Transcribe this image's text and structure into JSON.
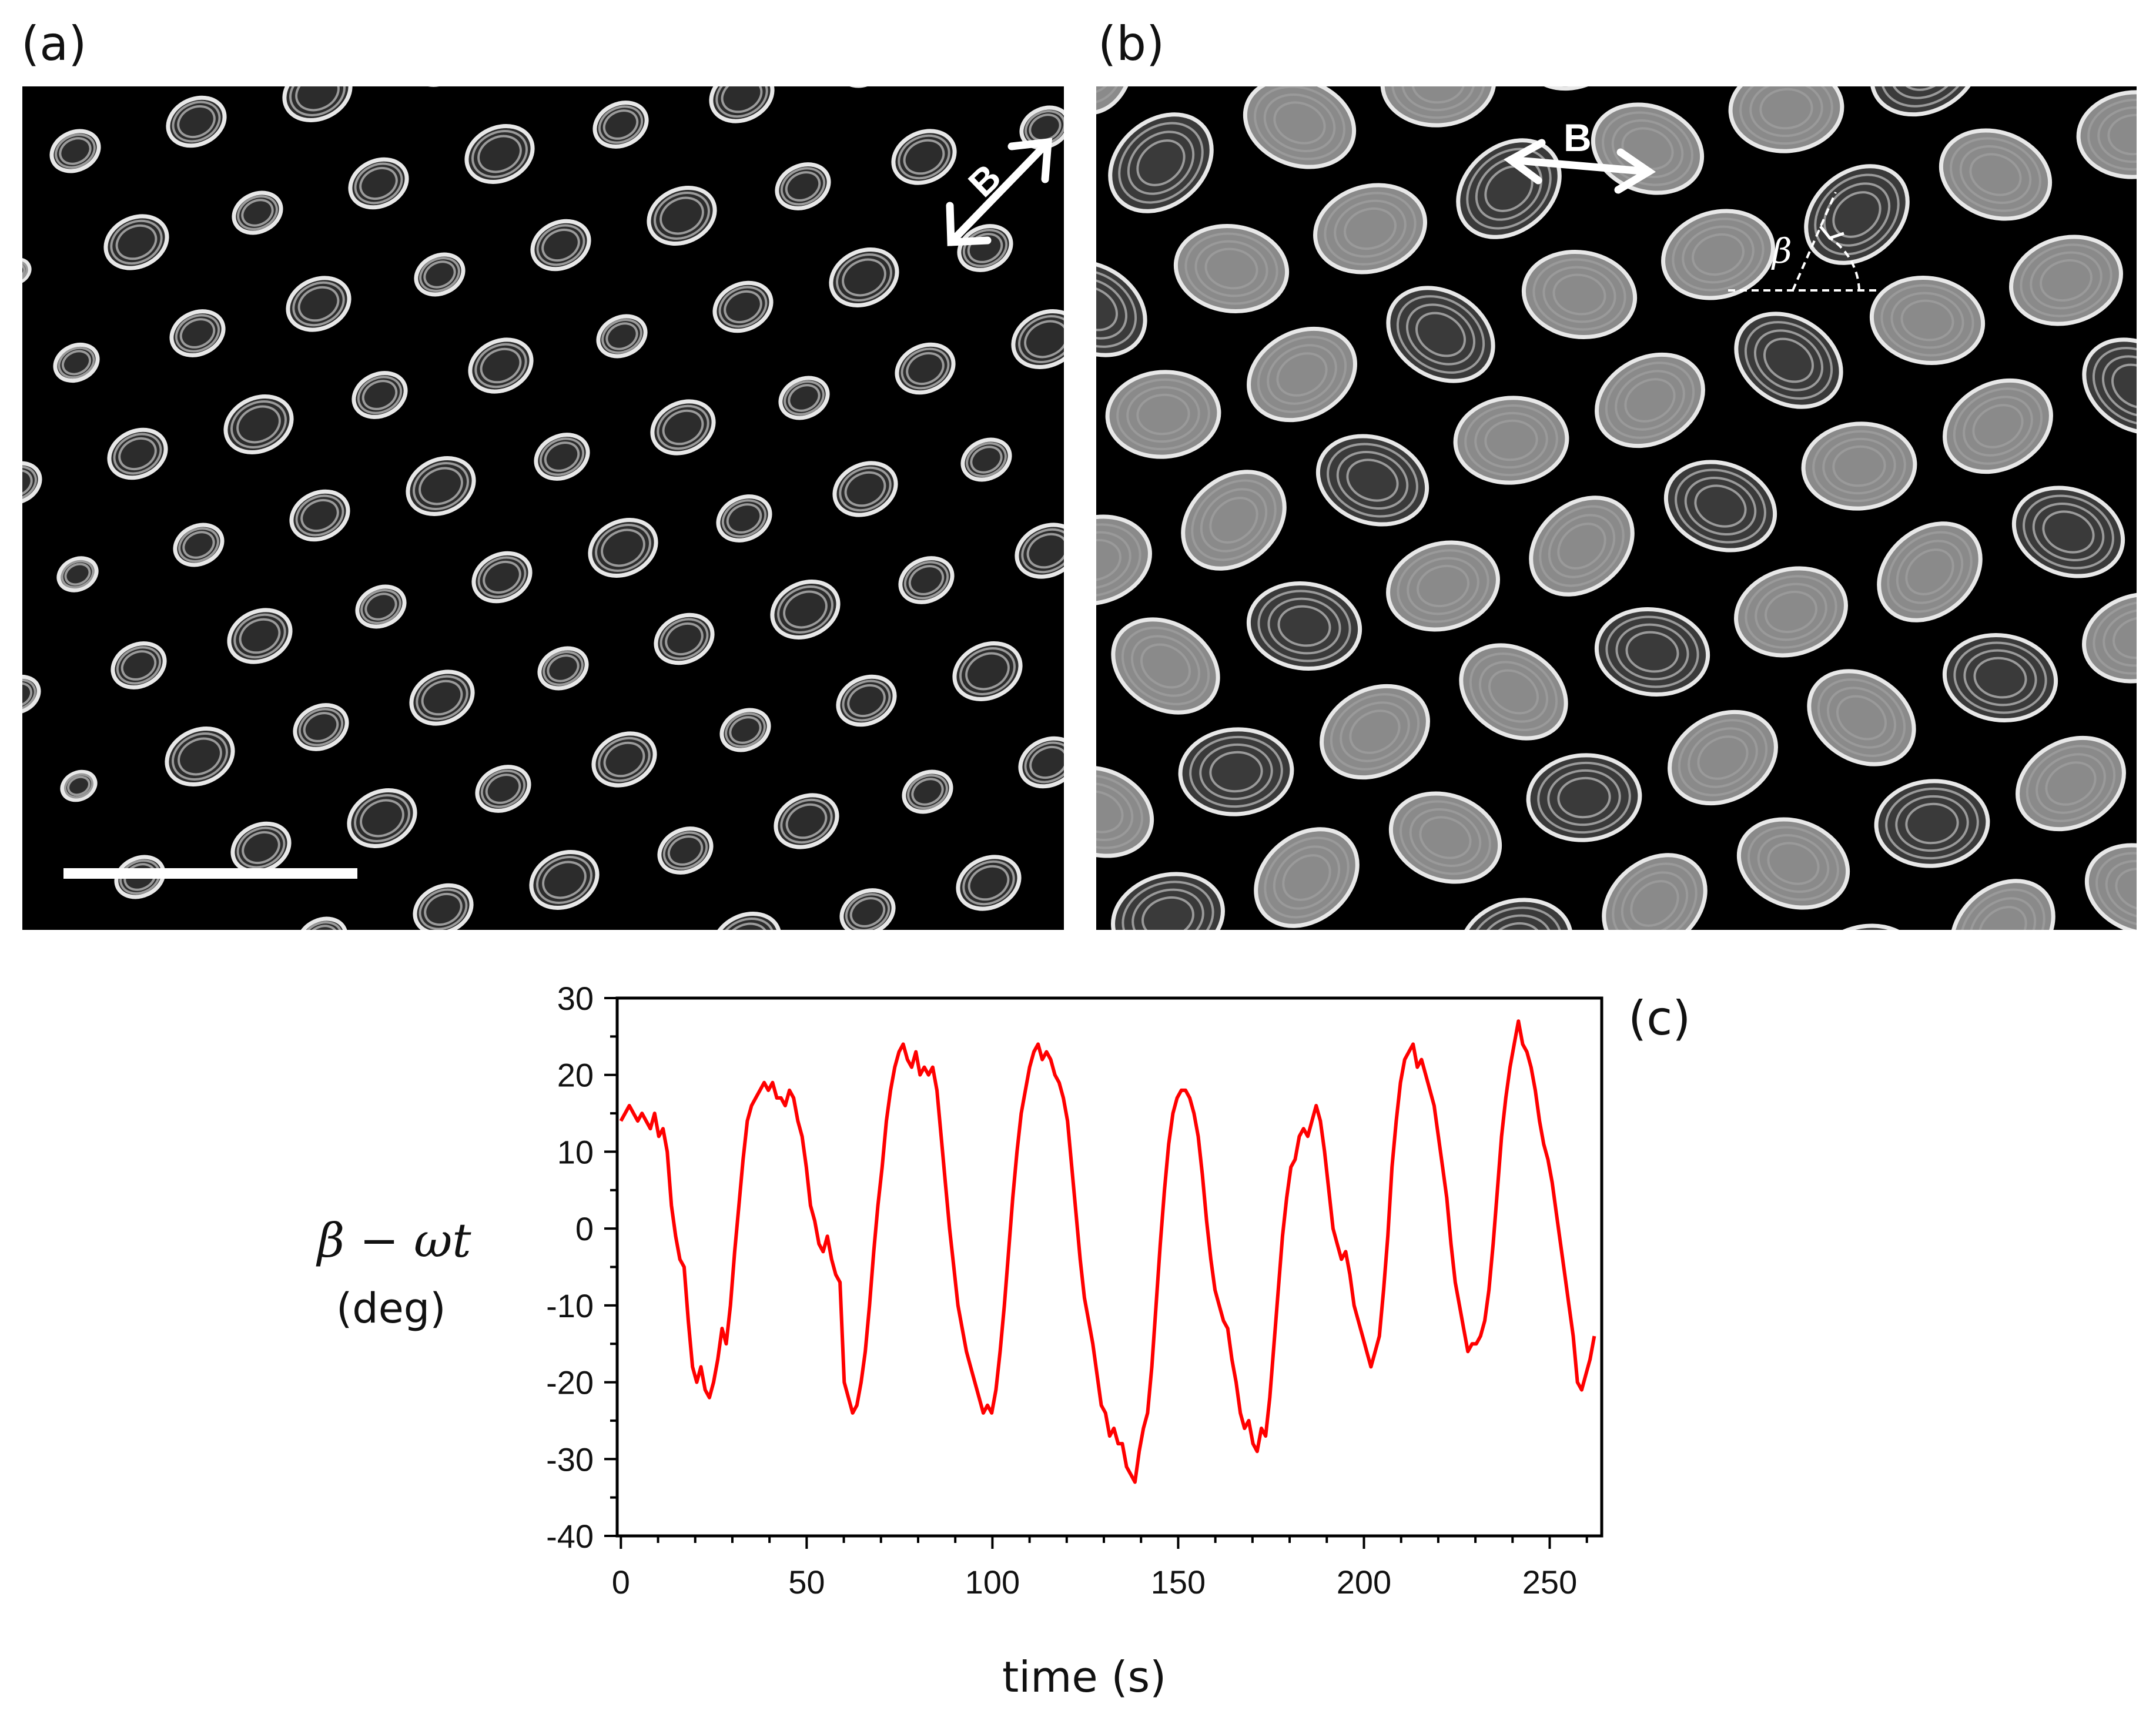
{
  "panels": {
    "a_label": "(a)",
    "b_label": "(b)",
    "c_label": "(c)"
  },
  "micrograph_a": {
    "field_label": "B",
    "has_scale_bar": true
  },
  "micrograph_b": {
    "field_label": "B",
    "angle_label": "β"
  },
  "chart_data": {
    "type": "line",
    "ylabel": "β − ωt",
    "ylabel_unit": "(deg)",
    "xlabel": "time (s)",
    "xlim": [
      -1,
      264
    ],
    "ylim": [
      -40,
      30
    ],
    "xticks": [
      0,
      50,
      100,
      150,
      200,
      250
    ],
    "yticks": [
      30,
      20,
      10,
      0,
      -10,
      -20,
      -30,
      -40
    ],
    "series": [
      {
        "color": "#ff0000",
        "points": [
          [
            0,
            14
          ],
          [
            1,
            15
          ],
          [
            2,
            16
          ],
          [
            3,
            15
          ],
          [
            4,
            14
          ],
          [
            5,
            15
          ],
          [
            6,
            14
          ],
          [
            7,
            13
          ],
          [
            8,
            15
          ],
          [
            9,
            12
          ],
          [
            10,
            13
          ],
          [
            11,
            10
          ],
          [
            12,
            3
          ],
          [
            13,
            -1
          ],
          [
            14,
            -4
          ],
          [
            15,
            -5
          ],
          [
            16,
            -12
          ],
          [
            17,
            -18
          ],
          [
            18,
            -20
          ],
          [
            19,
            -18
          ],
          [
            20,
            -21
          ],
          [
            21,
            -22
          ],
          [
            22,
            -20
          ],
          [
            23,
            -17
          ],
          [
            24,
            -13
          ],
          [
            25,
            -15
          ],
          [
            26,
            -10
          ],
          [
            27,
            -3
          ],
          [
            28,
            3
          ],
          [
            29,
            9
          ],
          [
            30,
            14
          ],
          [
            31,
            16
          ],
          [
            32,
            17
          ],
          [
            33,
            18
          ],
          [
            34,
            19
          ],
          [
            35,
            18
          ],
          [
            36,
            19
          ],
          [
            37,
            17
          ],
          [
            38,
            17
          ],
          [
            39,
            16
          ],
          [
            40,
            18
          ],
          [
            41,
            17
          ],
          [
            42,
            14
          ],
          [
            43,
            12
          ],
          [
            44,
            8
          ],
          [
            45,
            3
          ],
          [
            46,
            1
          ],
          [
            47,
            -2
          ],
          [
            48,
            -3
          ],
          [
            49,
            -1
          ],
          [
            50,
            -4
          ],
          [
            51,
            -6
          ],
          [
            52,
            -7
          ],
          [
            53,
            -20
          ],
          [
            54,
            -22
          ],
          [
            55,
            -24
          ],
          [
            56,
            -23
          ],
          [
            57,
            -20
          ],
          [
            58,
            -16
          ],
          [
            59,
            -10
          ],
          [
            60,
            -3
          ],
          [
            61,
            3
          ],
          [
            62,
            8
          ],
          [
            63,
            14
          ],
          [
            64,
            18
          ],
          [
            65,
            21
          ],
          [
            66,
            23
          ],
          [
            67,
            24
          ],
          [
            68,
            22
          ],
          [
            69,
            21
          ],
          [
            70,
            23
          ],
          [
            71,
            20
          ],
          [
            72,
            21
          ],
          [
            73,
            20
          ],
          [
            74,
            21
          ],
          [
            75,
            18
          ],
          [
            76,
            12
          ],
          [
            77,
            6
          ],
          [
            78,
            0
          ],
          [
            79,
            -5
          ],
          [
            80,
            -10
          ],
          [
            81,
            -13
          ],
          [
            82,
            -16
          ],
          [
            83,
            -18
          ],
          [
            84,
            -20
          ],
          [
            85,
            -22
          ],
          [
            86,
            -24
          ],
          [
            87,
            -23
          ],
          [
            88,
            -24
          ],
          [
            89,
            -21
          ],
          [
            90,
            -16
          ],
          [
            91,
            -10
          ],
          [
            92,
            -3
          ],
          [
            93,
            4
          ],
          [
            94,
            10
          ],
          [
            95,
            15
          ],
          [
            96,
            18
          ],
          [
            97,
            21
          ],
          [
            98,
            23
          ],
          [
            99,
            24
          ],
          [
            100,
            22
          ],
          [
            101,
            23
          ],
          [
            102,
            22
          ],
          [
            103,
            20
          ],
          [
            104,
            19
          ],
          [
            105,
            17
          ],
          [
            106,
            14
          ],
          [
            107,
            8
          ],
          [
            108,
            2
          ],
          [
            109,
            -4
          ],
          [
            110,
            -9
          ],
          [
            111,
            -12
          ],
          [
            112,
            -15
          ],
          [
            113,
            -19
          ],
          [
            114,
            -23
          ],
          [
            115,
            -24
          ],
          [
            116,
            -27
          ],
          [
            117,
            -26
          ],
          [
            118,
            -28
          ],
          [
            119,
            -28
          ],
          [
            120,
            -31
          ],
          [
            121,
            -32
          ],
          [
            122,
            -33
          ],
          [
            123,
            -29
          ],
          [
            124,
            -26
          ],
          [
            125,
            -24
          ],
          [
            126,
            -18
          ],
          [
            127,
            -10
          ],
          [
            128,
            -2
          ],
          [
            129,
            5
          ],
          [
            130,
            11
          ],
          [
            131,
            15
          ],
          [
            132,
            17
          ],
          [
            133,
            18
          ],
          [
            134,
            18
          ],
          [
            135,
            17
          ],
          [
            136,
            15
          ],
          [
            137,
            12
          ],
          [
            138,
            7
          ],
          [
            139,
            1
          ],
          [
            140,
            -4
          ],
          [
            141,
            -8
          ],
          [
            142,
            -10
          ],
          [
            143,
            -12
          ],
          [
            144,
            -13
          ],
          [
            145,
            -17
          ],
          [
            146,
            -20
          ],
          [
            147,
            -24
          ],
          [
            148,
            -26
          ],
          [
            149,
            -25
          ],
          [
            150,
            -28
          ],
          [
            151,
            -29
          ],
          [
            152,
            -26
          ],
          [
            153,
            -27
          ],
          [
            154,
            -22
          ],
          [
            155,
            -15
          ],
          [
            156,
            -8
          ],
          [
            157,
            -1
          ],
          [
            158,
            4
          ],
          [
            159,
            8
          ],
          [
            160,
            9
          ],
          [
            161,
            12
          ],
          [
            162,
            13
          ],
          [
            163,
            12
          ],
          [
            164,
            14
          ],
          [
            165,
            16
          ],
          [
            166,
            14
          ],
          [
            167,
            10
          ],
          [
            168,
            5
          ],
          [
            169,
            0
          ],
          [
            170,
            -2
          ],
          [
            171,
            -4
          ],
          [
            172,
            -3
          ],
          [
            173,
            -6
          ],
          [
            174,
            -10
          ],
          [
            175,
            -12
          ],
          [
            176,
            -14
          ],
          [
            177,
            -16
          ],
          [
            178,
            -18
          ],
          [
            179,
            -16
          ],
          [
            180,
            -14
          ],
          [
            181,
            -8
          ],
          [
            182,
            -1
          ],
          [
            183,
            8
          ],
          [
            184,
            14
          ],
          [
            185,
            19
          ],
          [
            186,
            22
          ],
          [
            187,
            23
          ],
          [
            188,
            24
          ],
          [
            189,
            21
          ],
          [
            190,
            22
          ],
          [
            191,
            20
          ],
          [
            192,
            18
          ],
          [
            193,
            16
          ],
          [
            194,
            12
          ],
          [
            195,
            8
          ],
          [
            196,
            4
          ],
          [
            197,
            -2
          ],
          [
            198,
            -7
          ],
          [
            199,
            -10
          ],
          [
            200,
            -13
          ],
          [
            201,
            -16
          ],
          [
            202,
            -15
          ],
          [
            203,
            -15
          ],
          [
            204,
            -14
          ],
          [
            205,
            -12
          ],
          [
            206,
            -8
          ],
          [
            207,
            -2
          ],
          [
            208,
            5
          ],
          [
            209,
            12
          ],
          [
            210,
            17
          ],
          [
            211,
            21
          ],
          [
            212,
            24
          ],
          [
            213,
            27
          ],
          [
            214,
            24
          ],
          [
            215,
            23
          ],
          [
            216,
            21
          ],
          [
            217,
            18
          ],
          [
            218,
            14
          ],
          [
            219,
            11
          ],
          [
            220,
            9
          ],
          [
            221,
            6
          ],
          [
            222,
            2
          ],
          [
            223,
            -2
          ],
          [
            224,
            -6
          ],
          [
            225,
            -10
          ],
          [
            226,
            -14
          ],
          [
            227,
            -20
          ],
          [
            228,
            -21
          ],
          [
            229,
            -19
          ],
          [
            230,
            -17
          ],
          [
            231,
            -14
          ]
        ]
      }
    ]
  }
}
